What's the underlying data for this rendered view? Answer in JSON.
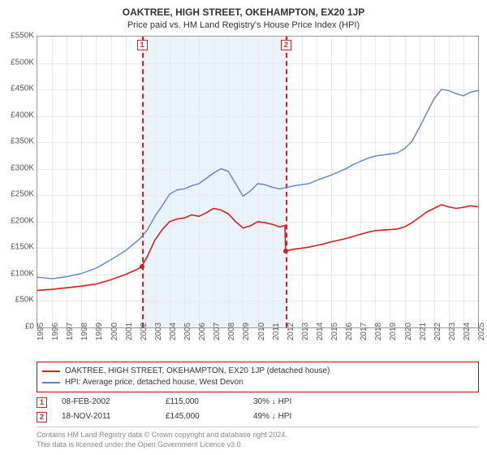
{
  "title": "OAKTREE, HIGH STREET, OKEHAMPTON, EX20 1JP",
  "subtitle": "Price paid vs. HM Land Registry's House Price Index (HPI)",
  "chart": {
    "type": "line",
    "background_color": "#ffffff",
    "grid_color": "#e8e8e8",
    "border_color": "#999999",
    "highlight_band_color": "#eaf2fb",
    "x_start_year": 1995,
    "x_end_year": 2025,
    "xticks": [
      1995,
      1996,
      1997,
      1998,
      1999,
      2000,
      2001,
      2002,
      2003,
      2004,
      2005,
      2006,
      2007,
      2008,
      2009,
      2010,
      2011,
      2012,
      2013,
      2014,
      2015,
      2016,
      2017,
      2018,
      2019,
      2020,
      2021,
      2022,
      2023,
      2024,
      2025
    ],
    "ymin": 0,
    "ymax": 550000,
    "ytick_step": 50000,
    "ytick_labels": [
      "£0",
      "£50K",
      "£100K",
      "£150K",
      "£200K",
      "£250K",
      "£300K",
      "£350K",
      "£400K",
      "£450K",
      "£500K",
      "£550K"
    ],
    "highlight_band": {
      "start": 2002.1,
      "end": 2011.9
    },
    "events": [
      {
        "num": "1",
        "x": 2002.1,
        "marker_top_y": 535000
      },
      {
        "num": "2",
        "x": 2011.9,
        "marker_top_y": 535000
      }
    ],
    "series": [
      {
        "id": "prop",
        "label": "OAKTREE, HIGH STREET, OKEHAMPTON, EX20 1JP (detached house)",
        "color": "#d02020",
        "line_width": 1.6,
        "points": [
          [
            1995.0,
            70000
          ],
          [
            1996.0,
            72000
          ],
          [
            1997.0,
            75000
          ],
          [
            1998.0,
            78000
          ],
          [
            1999.0,
            82000
          ],
          [
            2000.0,
            90000
          ],
          [
            2001.0,
            100000
          ],
          [
            2001.8,
            110000
          ],
          [
            2002.1,
            115000
          ],
          [
            2002.5,
            135000
          ],
          [
            2003.0,
            165000
          ],
          [
            2003.5,
            185000
          ],
          [
            2004.0,
            200000
          ],
          [
            2004.5,
            205000
          ],
          [
            2005.0,
            207000
          ],
          [
            2005.5,
            213000
          ],
          [
            2006.0,
            210000
          ],
          [
            2006.5,
            217000
          ],
          [
            2007.0,
            225000
          ],
          [
            2007.5,
            222000
          ],
          [
            2008.0,
            215000
          ],
          [
            2008.5,
            200000
          ],
          [
            2009.0,
            188000
          ],
          [
            2009.5,
            192000
          ],
          [
            2010.0,
            200000
          ],
          [
            2010.5,
            198000
          ],
          [
            2011.0,
            195000
          ],
          [
            2011.5,
            190000
          ],
          [
            2011.85,
            193000
          ],
          [
            2011.9,
            145000
          ],
          [
            2012.5,
            148000
          ],
          [
            2013.0,
            150000
          ],
          [
            2013.5,
            152000
          ],
          [
            2014.0,
            155000
          ],
          [
            2014.5,
            158000
          ],
          [
            2015.0,
            162000
          ],
          [
            2015.5,
            165000
          ],
          [
            2016.0,
            168000
          ],
          [
            2016.5,
            172000
          ],
          [
            2017.0,
            176000
          ],
          [
            2017.5,
            180000
          ],
          [
            2018.0,
            183000
          ],
          [
            2018.5,
            184000
          ],
          [
            2019.0,
            185000
          ],
          [
            2019.5,
            186000
          ],
          [
            2020.0,
            190000
          ],
          [
            2020.5,
            198000
          ],
          [
            2021.0,
            208000
          ],
          [
            2021.5,
            218000
          ],
          [
            2022.0,
            225000
          ],
          [
            2022.5,
            232000
          ],
          [
            2023.0,
            228000
          ],
          [
            2023.5,
            225000
          ],
          [
            2024.0,
            227000
          ],
          [
            2024.5,
            230000
          ],
          [
            2025.0,
            228000
          ]
        ],
        "dot_points": [
          [
            2002.1,
            115000
          ],
          [
            2011.9,
            145000
          ]
        ]
      },
      {
        "id": "hpi",
        "label": "HPI: Average price, detached house, West Devon",
        "color": "#5b85c8",
        "line_width": 1.4,
        "points": [
          [
            1995.0,
            95000
          ],
          [
            1996.0,
            92000
          ],
          [
            1997.0,
            96000
          ],
          [
            1998.0,
            102000
          ],
          [
            1999.0,
            112000
          ],
          [
            2000.0,
            128000
          ],
          [
            2001.0,
            145000
          ],
          [
            2002.0,
            168000
          ],
          [
            2002.5,
            185000
          ],
          [
            2003.0,
            210000
          ],
          [
            2003.5,
            230000
          ],
          [
            2004.0,
            252000
          ],
          [
            2004.5,
            260000
          ],
          [
            2005.0,
            262000
          ],
          [
            2005.5,
            268000
          ],
          [
            2006.0,
            272000
          ],
          [
            2006.5,
            282000
          ],
          [
            2007.0,
            292000
          ],
          [
            2007.5,
            300000
          ],
          [
            2008.0,
            295000
          ],
          [
            2008.5,
            272000
          ],
          [
            2009.0,
            248000
          ],
          [
            2009.5,
            258000
          ],
          [
            2010.0,
            272000
          ],
          [
            2010.5,
            270000
          ],
          [
            2011.0,
            265000
          ],
          [
            2011.5,
            262000
          ],
          [
            2012.0,
            265000
          ],
          [
            2012.5,
            268000
          ],
          [
            2013.0,
            270000
          ],
          [
            2013.5,
            272000
          ],
          [
            2014.0,
            278000
          ],
          [
            2014.5,
            283000
          ],
          [
            2015.0,
            288000
          ],
          [
            2015.5,
            294000
          ],
          [
            2016.0,
            300000
          ],
          [
            2016.5,
            308000
          ],
          [
            2017.0,
            314000
          ],
          [
            2017.5,
            320000
          ],
          [
            2018.0,
            324000
          ],
          [
            2018.5,
            326000
          ],
          [
            2019.0,
            328000
          ],
          [
            2019.5,
            330000
          ],
          [
            2020.0,
            338000
          ],
          [
            2020.5,
            352000
          ],
          [
            2021.0,
            378000
          ],
          [
            2021.5,
            405000
          ],
          [
            2022.0,
            432000
          ],
          [
            2022.5,
            450000
          ],
          [
            2023.0,
            448000
          ],
          [
            2023.5,
            442000
          ],
          [
            2024.0,
            438000
          ],
          [
            2024.5,
            445000
          ],
          [
            2025.0,
            448000
          ]
        ]
      }
    ]
  },
  "events_table": [
    {
      "num": "1",
      "date": "08-FEB-2002",
      "price": "£115,000",
      "delta": "30% ↓ HPI"
    },
    {
      "num": "2",
      "date": "18-NOV-2011",
      "price": "£145,000",
      "delta": "49% ↓ HPI"
    }
  ],
  "footer": {
    "line1": "Contains HM Land Registry data © Crown copyright and database right 2024.",
    "line2": "This data is licensed under the Open Government Licence v3.0."
  }
}
